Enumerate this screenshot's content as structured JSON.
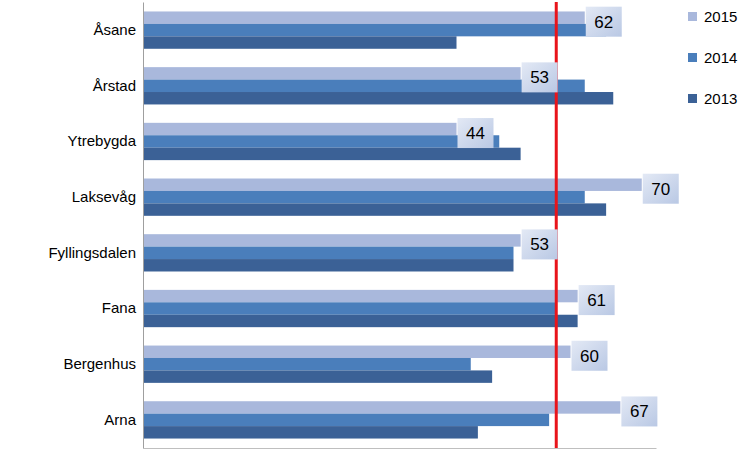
{
  "chart_data": {
    "type": "bar",
    "orientation": "horizontal",
    "categories": [
      "Åsane",
      "Årstad",
      "Ytrebygda",
      "Laksevåg",
      "Fyllingsdalen",
      "Fana",
      "Bergenhus",
      "Arna"
    ],
    "series": [
      {
        "name": "2015",
        "color": "#a9b8dc",
        "values": [
          62,
          53,
          44,
          70,
          53,
          61,
          60,
          67
        ],
        "data_labels": true
      },
      {
        "name": "2014",
        "color": "#4a7ebb",
        "values": [
          65,
          62,
          50,
          62,
          52,
          58,
          46,
          57
        ]
      },
      {
        "name": "2013",
        "color": "#3b6196",
        "values": [
          44,
          66,
          53,
          65,
          52,
          61,
          49,
          47
        ]
      }
    ],
    "reference_line": 58,
    "xlim": [
      0,
      72
    ],
    "xticks": [],
    "tick_labels": false,
    "grid": false,
    "legend": "upper right"
  }
}
